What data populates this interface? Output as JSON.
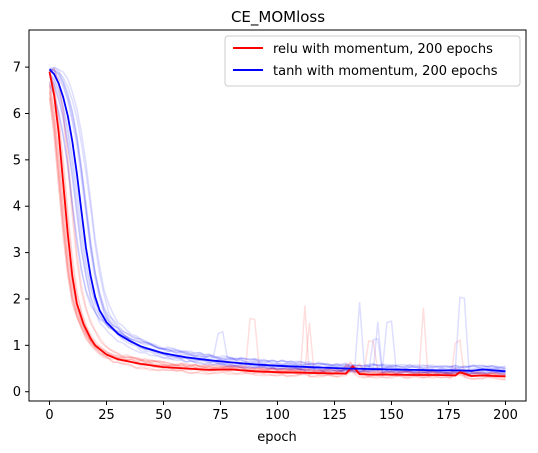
{
  "chart_data": {
    "type": "line",
    "title": "CE_MOMloss",
    "xlabel": "epoch",
    "ylabel": "",
    "xlim": [
      -9,
      209
    ],
    "ylim": [
      -0.2,
      7.8
    ],
    "xticks": [
      0,
      25,
      50,
      75,
      100,
      125,
      150,
      175,
      200
    ],
    "yticks": [
      0,
      1,
      2,
      3,
      4,
      5,
      6,
      7
    ],
    "grid": false,
    "legend_position": "top-right",
    "series": [
      {
        "name": "relu with momentum, 200 epochs",
        "color": "#ff0000",
        "x": [
          0,
          2,
          4,
          6,
          8,
          10,
          12,
          15,
          18,
          20,
          25,
          30,
          40,
          50,
          60,
          70,
          80,
          90,
          100,
          110,
          120,
          130,
          133,
          136,
          140,
          150,
          160,
          170,
          178,
          180,
          185,
          190,
          195,
          200
        ],
        "y": [
          6.9,
          6.4,
          5.6,
          4.5,
          3.4,
          2.5,
          1.9,
          1.45,
          1.15,
          1.0,
          0.8,
          0.7,
          0.6,
          0.53,
          0.5,
          0.47,
          0.48,
          0.44,
          0.42,
          0.41,
          0.4,
          0.39,
          0.55,
          0.38,
          0.37,
          0.37,
          0.36,
          0.36,
          0.35,
          0.42,
          0.34,
          0.35,
          0.34,
          0.33
        ]
      },
      {
        "name": "tanh with momentum, 200 epochs",
        "color": "#0000ff",
        "x": [
          0,
          2,
          4,
          6,
          8,
          10,
          12,
          14,
          16,
          18,
          20,
          22,
          25,
          30,
          35,
          40,
          45,
          50,
          60,
          70,
          80,
          90,
          100,
          110,
          120,
          130,
          140,
          150,
          160,
          170,
          180,
          185,
          190,
          195,
          200
        ],
        "y": [
          6.95,
          6.85,
          6.65,
          6.35,
          5.95,
          5.4,
          4.7,
          3.9,
          3.1,
          2.5,
          2.05,
          1.75,
          1.5,
          1.25,
          1.1,
          0.98,
          0.9,
          0.83,
          0.74,
          0.68,
          0.63,
          0.59,
          0.56,
          0.54,
          0.52,
          0.5,
          0.49,
          0.48,
          0.47,
          0.46,
          0.46,
          0.45,
          0.48,
          0.46,
          0.44
        ]
      }
    ]
  }
}
